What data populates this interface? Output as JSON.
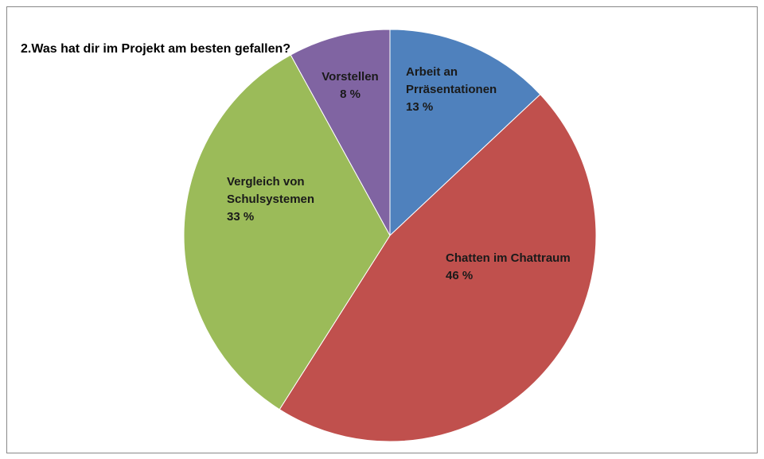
{
  "chart_data": {
    "type": "pie",
    "title": "2.Was hat dir im Projekt am besten gefallen?",
    "categories": [
      "Arbeit an Prräsentationen",
      "Chatten im Chattraum",
      "Vergleich von Schulsystemen",
      "Vorstellen"
    ],
    "values": [
      13,
      46,
      33,
      8
    ],
    "value_labels": [
      "13 %",
      "46 %",
      "33 %",
      "8 %"
    ],
    "colors": [
      "#4f81bd",
      "#c0504d",
      "#9bbb59",
      "#8064a2"
    ]
  }
}
